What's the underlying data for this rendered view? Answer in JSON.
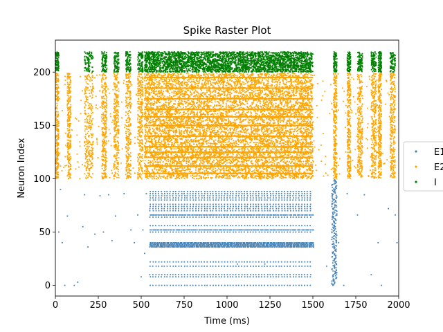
{
  "chart_data": {
    "type": "scatter",
    "title": "Spike Raster Plot",
    "xlabel": "Time (ms)",
    "ylabel": "Neuron Index",
    "xlim": [
      0,
      2000
    ],
    "ylim": [
      -10,
      230
    ],
    "x_ticks": [
      0,
      250,
      500,
      750,
      1000,
      1250,
      1500,
      1750,
      2000
    ],
    "x_tick_labels": [
      "0",
      "250",
      "500",
      "750",
      "1000",
      "1250",
      "1500",
      "1750",
      "2000"
    ],
    "y_ticks": [
      0,
      50,
      100,
      150,
      200
    ],
    "y_tick_labels": [
      "0",
      "50",
      "100",
      "150",
      "200"
    ],
    "grid": false,
    "legend_position": "right (partially clipped)",
    "series": [
      {
        "name": "E1",
        "color": "#4682b4",
        "neuron_range": [
          0,
          99
        ],
        "sustained_activity": {
          "time_range": [
            550,
            1500
          ],
          "active_neurons": [
            0,
            8,
            10,
            18,
            22,
            36,
            37,
            38,
            39,
            40,
            50,
            52,
            56,
            64,
            66,
            70,
            72,
            74,
            76,
            80,
            82,
            84,
            86,
            88
          ]
        },
        "synchronous_burst": {
          "time_range": [
            1610,
            1640
          ],
          "neuron_range": [
            0,
            99
          ]
        },
        "sparse_spikes": [
          [
            20,
            50
          ],
          [
            30,
            90
          ],
          [
            40,
            40
          ],
          [
            55,
            0
          ],
          [
            70,
            65
          ],
          [
            110,
            0
          ],
          [
            130,
            3
          ],
          [
            160,
            55
          ],
          [
            170,
            85
          ],
          [
            190,
            36
          ],
          [
            230,
            48
          ],
          [
            260,
            84
          ],
          [
            280,
            50
          ],
          [
            310,
            85
          ],
          [
            330,
            42
          ],
          [
            350,
            65
          ],
          [
            400,
            86
          ],
          [
            440,
            52
          ],
          [
            460,
            40
          ],
          [
            480,
            66
          ],
          [
            500,
            8
          ],
          [
            510,
            52
          ],
          [
            520,
            30
          ],
          [
            530,
            86
          ],
          [
            1650,
            40
          ],
          [
            1680,
            0
          ],
          [
            1700,
            86
          ],
          [
            1760,
            66
          ],
          [
            1800,
            85
          ],
          [
            1840,
            10
          ],
          [
            1880,
            40
          ],
          [
            1900,
            0
          ],
          [
            1940,
            72
          ],
          [
            1980,
            66
          ],
          [
            1990,
            40
          ],
          [
            1060,
            20
          ],
          [
            1220,
            20
          ],
          [
            1580,
            18
          ]
        ]
      },
      {
        "name": "E2",
        "color": "#ffa500",
        "neuron_range": [
          100,
          199
        ],
        "sustained_activity": {
          "time_range": [
            520,
            1500
          ],
          "neuron_range": [
            100,
            199
          ]
        },
        "burst_windows": [
          [
            0,
            20
          ],
          [
            70,
            90
          ],
          [
            170,
            220
          ],
          [
            270,
            300
          ],
          [
            340,
            370
          ],
          [
            410,
            440
          ],
          [
            480,
            510
          ],
          [
            1620,
            1640
          ],
          [
            1700,
            1720
          ],
          [
            1760,
            1790
          ],
          [
            1840,
            1870
          ],
          [
            1880,
            1900
          ],
          [
            1950,
            1980
          ]
        ]
      },
      {
        "name": "I",
        "color": "#008000",
        "neuron_range": [
          200,
          219
        ],
        "sustained_activity": {
          "time_range": [
            520,
            1500
          ],
          "neuron_range": [
            200,
            219
          ]
        },
        "burst_windows": [
          [
            0,
            20
          ],
          [
            170,
            220
          ],
          [
            270,
            300
          ],
          [
            340,
            370
          ],
          [
            410,
            440
          ],
          [
            480,
            510
          ],
          [
            1620,
            1640
          ],
          [
            1700,
            1720
          ],
          [
            1760,
            1790
          ],
          [
            1840,
            1870
          ],
          [
            1880,
            1900
          ],
          [
            1950,
            1980
          ]
        ]
      }
    ],
    "legend": [
      {
        "label": "E1",
        "color": "#4682b4"
      },
      {
        "label": "E2",
        "color": "#ffa500"
      },
      {
        "label": "I",
        "color": "#008000"
      }
    ]
  }
}
